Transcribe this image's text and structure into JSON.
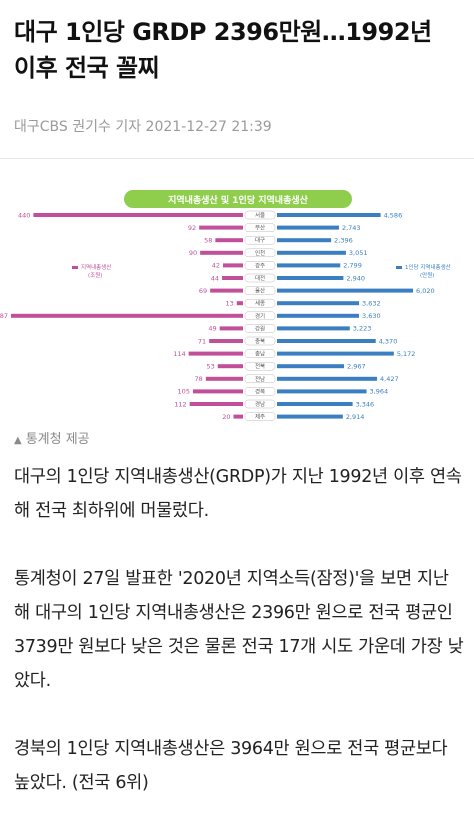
{
  "article": {
    "headline": "대구 1인당 GRDP 2396만원…1992년 이후 전국 꼴찌",
    "byline": "대구CBS 권기수 기자 2021-12-27 21:39",
    "caption": "통계청 제공",
    "caption_icon": "triangle-up-icon",
    "paragraphs": [
      "대구의 1인당 지역내총생산(GRDP)가 지난 1992년 이후 연속해 전국 최하위에 머물렀다.",
      "통계청이 27일 발표한 '2020년 지역소득(잠정)'을 보면 지난해 대구의 1인당 지역내총생산은 2396만 원으로 전국 평균인 3739만 원보다 낮은 것은 물론 전국 17개 시도 가운데 가장 낮았다.",
      "경북의 1인당 지역내총생산은 3964만 원으로 전국 평균보다 높았다. (전국 6위)"
    ]
  },
  "chart_data": {
    "type": "bar",
    "title": "지역내총생산 및 1인당 지역내총생산",
    "legend_left": [
      "지역내총생산",
      "(조원)"
    ],
    "legend_right": [
      "1인당 지역내총생산",
      "(만원)"
    ],
    "colors": {
      "left": "#c24f9a",
      "right": "#3b7fc2",
      "title_bg": "#8fce4d"
    },
    "categories": [
      "서울",
      "부산",
      "대구",
      "인천",
      "광주",
      "대전",
      "울산",
      "세종",
      "경기",
      "강원",
      "충북",
      "충남",
      "전북",
      "전남",
      "경북",
      "경남",
      "제주"
    ],
    "series": [
      {
        "name": "지역내총생산",
        "values": [
          440,
          92,
          58,
          90,
          42,
          44,
          69,
          13,
          487,
          49,
          71,
          114,
          53,
          78,
          105,
          112,
          20
        ]
      },
      {
        "name": "1인당 지역내총생산",
        "values": [
          4586,
          2743,
          2396,
          3051,
          2799,
          2940,
          6020,
          3632,
          3630,
          3223,
          4370,
          5172,
          2967,
          4427,
          3964,
          3346,
          2914
        ]
      }
    ],
    "value_labels_left": [
      "440",
      "92",
      "58",
      "90",
      "42",
      "44",
      "69",
      "13",
      "487",
      "49",
      "71",
      "114",
      "53",
      "78",
      "105",
      "112",
      "20"
    ],
    "value_labels_right": [
      "4,586",
      "2,743",
      "2,396",
      "3,051",
      "2,799",
      "2,940",
      "6,020",
      "3,632",
      "3,630",
      "3,223",
      "4,370",
      "5,172",
      "2,967",
      "4,427",
      "3,964",
      "3,346",
      "2,914"
    ]
  }
}
